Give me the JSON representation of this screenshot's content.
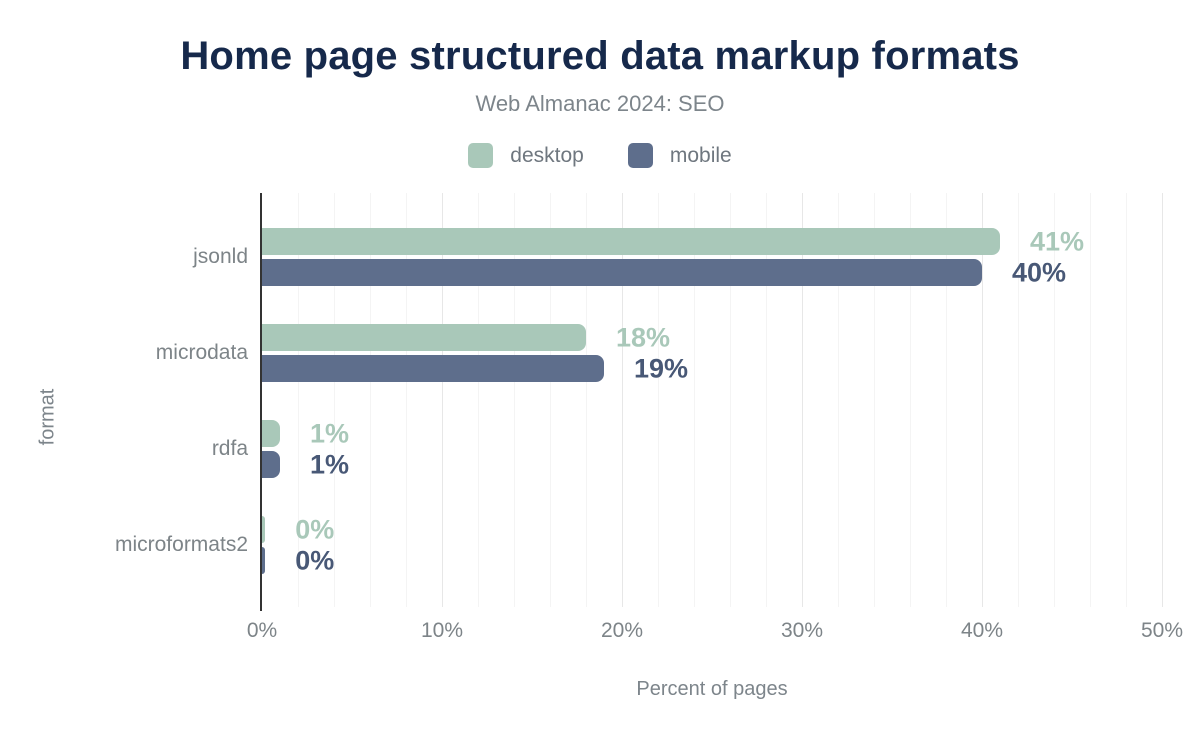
{
  "figure": {
    "title": "Home page structured data markup formats",
    "subtitle": "Web Almanac 2024: SEO"
  },
  "chart_data": {
    "type": "bar",
    "orientation": "horizontal",
    "title": "Home page structured data markup formats",
    "subtitle": "Web Almanac 2024: SEO",
    "xlabel": "Percent of pages",
    "ylabel": "format",
    "xlim": [
      0,
      50
    ],
    "grid": {
      "minor_step_pct": 2,
      "major_step_pct": 10,
      "vertical_gridlines": true
    },
    "legend_position": "top",
    "categories": [
      "jsonld",
      "microdata",
      "rdfa",
      "microformats2"
    ],
    "series": [
      {
        "name": "desktop",
        "color": "#a9c8b9",
        "label_color": "#a9c8b9",
        "values": [
          41,
          18,
          1,
          0
        ],
        "labels": [
          "41%",
          "18%",
          "1%",
          "0%"
        ]
      },
      {
        "name": "mobile",
        "color": "#5e6e8c",
        "label_color": "#485876",
        "values": [
          40,
          19,
          1,
          0
        ],
        "labels": [
          "40%",
          "19%",
          "1%",
          "0%"
        ]
      }
    ],
    "x_ticks": [
      {
        "value": 0,
        "label": "0%"
      },
      {
        "value": 10,
        "label": "10%"
      },
      {
        "value": 20,
        "label": "20%"
      },
      {
        "value": 30,
        "label": "30%"
      },
      {
        "value": 40,
        "label": "40%"
      },
      {
        "value": 50,
        "label": "50%"
      }
    ]
  }
}
